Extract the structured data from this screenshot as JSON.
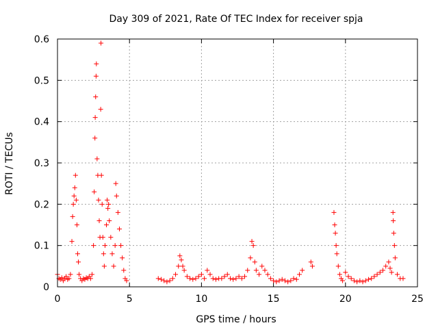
{
  "chart_data": {
    "type": "scatter",
    "title": "Day 309 of 2021, Rate Of TEC Index for receiver spja",
    "xlabel": "GPS time / hours",
    "ylabel": "ROTI / TECUs",
    "xlim": [
      0,
      25
    ],
    "ylim": [
      0,
      0.6
    ],
    "xticks": [
      0,
      5,
      10,
      15,
      20,
      25
    ],
    "yticks": [
      0,
      0.1,
      0.2,
      0.3,
      0.4,
      0.5,
      0.6
    ],
    "grid": true,
    "marker": "+",
    "marker_color": "#ff0000",
    "series": [
      {
        "points": [
          [
            0.0,
            0.03
          ],
          [
            0.1,
            0.02
          ],
          [
            0.2,
            0.018
          ],
          [
            0.3,
            0.022
          ],
          [
            0.4,
            0.015
          ],
          [
            0.5,
            0.02
          ],
          [
            0.6,
            0.025
          ],
          [
            0.7,
            0.018
          ],
          [
            0.8,
            0.02
          ],
          [
            0.9,
            0.03
          ],
          [
            1.0,
            0.11
          ],
          [
            1.05,
            0.17
          ],
          [
            1.1,
            0.2
          ],
          [
            1.15,
            0.22
          ],
          [
            1.2,
            0.24
          ],
          [
            1.25,
            0.27
          ],
          [
            1.3,
            0.21
          ],
          [
            1.35,
            0.15
          ],
          [
            1.4,
            0.08
          ],
          [
            1.45,
            0.06
          ],
          [
            1.5,
            0.03
          ],
          [
            1.6,
            0.02
          ],
          [
            1.7,
            0.015
          ],
          [
            1.8,
            0.02
          ],
          [
            1.9,
            0.018
          ],
          [
            2.0,
            0.022
          ],
          [
            2.1,
            0.02
          ],
          [
            2.2,
            0.025
          ],
          [
            2.3,
            0.02
          ],
          [
            2.4,
            0.03
          ],
          [
            2.5,
            0.1
          ],
          [
            2.55,
            0.23
          ],
          [
            2.6,
            0.36
          ],
          [
            2.62,
            0.41
          ],
          [
            2.65,
            0.46
          ],
          [
            2.68,
            0.51
          ],
          [
            2.7,
            0.54
          ],
          [
            2.75,
            0.31
          ],
          [
            2.8,
            0.27
          ],
          [
            2.85,
            0.21
          ],
          [
            2.9,
            0.16
          ],
          [
            2.95,
            0.12
          ],
          [
            3.0,
            0.43
          ],
          [
            3.02,
            0.59
          ],
          [
            3.05,
            0.27
          ],
          [
            3.1,
            0.2
          ],
          [
            3.15,
            0.12
          ],
          [
            3.2,
            0.08
          ],
          [
            3.25,
            0.05
          ],
          [
            3.3,
            0.1
          ],
          [
            3.4,
            0.15
          ],
          [
            3.45,
            0.21
          ],
          [
            3.5,
            0.19
          ],
          [
            3.55,
            0.2
          ],
          [
            3.6,
            0.16
          ],
          [
            3.7,
            0.12
          ],
          [
            3.8,
            0.08
          ],
          [
            3.9,
            0.05
          ],
          [
            4.0,
            0.1
          ],
          [
            4.05,
            0.25
          ],
          [
            4.1,
            0.22
          ],
          [
            4.2,
            0.18
          ],
          [
            4.3,
            0.14
          ],
          [
            4.4,
            0.1
          ],
          [
            4.5,
            0.07
          ],
          [
            4.6,
            0.04
          ],
          [
            4.7,
            0.02
          ],
          [
            4.8,
            0.015
          ],
          [
            7.0,
            0.02
          ],
          [
            7.2,
            0.018
          ],
          [
            7.4,
            0.015
          ],
          [
            7.6,
            0.012
          ],
          [
            7.8,
            0.015
          ],
          [
            8.0,
            0.02
          ],
          [
            8.2,
            0.03
          ],
          [
            8.4,
            0.05
          ],
          [
            8.5,
            0.075
          ],
          [
            8.6,
            0.065
          ],
          [
            8.7,
            0.05
          ],
          [
            8.8,
            0.04
          ],
          [
            9.0,
            0.025
          ],
          [
            9.2,
            0.02
          ],
          [
            9.4,
            0.018
          ],
          [
            9.6,
            0.02
          ],
          [
            9.8,
            0.025
          ],
          [
            10.0,
            0.03
          ],
          [
            10.2,
            0.02
          ],
          [
            10.4,
            0.04
          ],
          [
            10.6,
            0.03
          ],
          [
            10.8,
            0.02
          ],
          [
            11.0,
            0.018
          ],
          [
            11.2,
            0.02
          ],
          [
            11.4,
            0.02
          ],
          [
            11.6,
            0.025
          ],
          [
            11.8,
            0.03
          ],
          [
            12.0,
            0.02
          ],
          [
            12.2,
            0.018
          ],
          [
            12.4,
            0.02
          ],
          [
            12.6,
            0.025
          ],
          [
            12.8,
            0.02
          ],
          [
            13.0,
            0.025
          ],
          [
            13.2,
            0.04
          ],
          [
            13.4,
            0.07
          ],
          [
            13.5,
            0.11
          ],
          [
            13.6,
            0.1
          ],
          [
            13.7,
            0.06
          ],
          [
            13.8,
            0.04
          ],
          [
            14.0,
            0.03
          ],
          [
            14.2,
            0.05
          ],
          [
            14.4,
            0.04
          ],
          [
            14.6,
            0.03
          ],
          [
            14.8,
            0.02
          ],
          [
            15.0,
            0.015
          ],
          [
            15.2,
            0.012
          ],
          [
            15.4,
            0.015
          ],
          [
            15.6,
            0.018
          ],
          [
            15.8,
            0.015
          ],
          [
            16.0,
            0.012
          ],
          [
            16.2,
            0.015
          ],
          [
            16.4,
            0.02
          ],
          [
            16.6,
            0.018
          ],
          [
            16.8,
            0.03
          ],
          [
            17.0,
            0.04
          ],
          [
            17.6,
            0.06
          ],
          [
            17.7,
            0.05
          ],
          [
            19.2,
            0.18
          ],
          [
            19.25,
            0.15
          ],
          [
            19.3,
            0.13
          ],
          [
            19.35,
            0.1
          ],
          [
            19.4,
            0.08
          ],
          [
            19.5,
            0.05
          ],
          [
            19.6,
            0.03
          ],
          [
            19.7,
            0.02
          ],
          [
            19.8,
            0.015
          ],
          [
            20.0,
            0.035
          ],
          [
            20.2,
            0.025
          ],
          [
            20.4,
            0.02
          ],
          [
            20.6,
            0.015
          ],
          [
            20.8,
            0.012
          ],
          [
            21.0,
            0.015
          ],
          [
            21.2,
            0.012
          ],
          [
            21.4,
            0.015
          ],
          [
            21.6,
            0.018
          ],
          [
            21.8,
            0.02
          ],
          [
            22.0,
            0.025
          ],
          [
            22.2,
            0.03
          ],
          [
            22.4,
            0.035
          ],
          [
            22.6,
            0.04
          ],
          [
            22.8,
            0.05
          ],
          [
            23.0,
            0.06
          ],
          [
            23.1,
            0.045
          ],
          [
            23.2,
            0.035
          ],
          [
            23.3,
            0.18
          ],
          [
            23.32,
            0.16
          ],
          [
            23.35,
            0.13
          ],
          [
            23.4,
            0.1
          ],
          [
            23.45,
            0.07
          ],
          [
            23.6,
            0.03
          ],
          [
            23.8,
            0.02
          ],
          [
            24.0,
            0.02
          ]
        ]
      }
    ]
  }
}
